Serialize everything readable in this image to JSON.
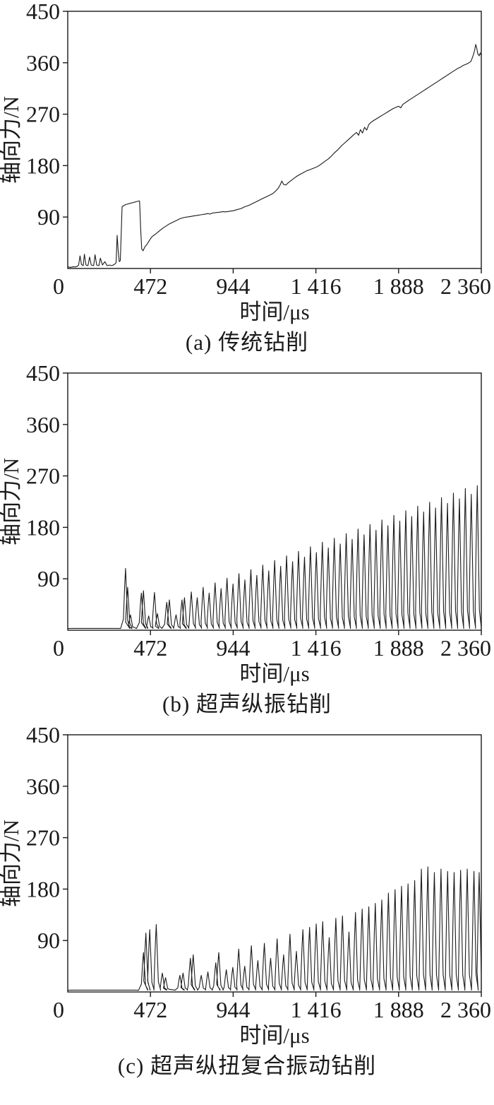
{
  "page": {
    "background": "#ffffff",
    "ink": "#1a1a1a"
  },
  "chart_data": {
    "note": "see charts[] — three stacked axial-force vs time plots"
  },
  "charts": [
    {
      "caption": "(a) 传统钻削",
      "xlabel": "时间/μs",
      "ylabel": "轴向力/N",
      "type": "line",
      "xlim": [
        0,
        2360
      ],
      "ylim": [
        0,
        450
      ],
      "xticks": [
        472,
        944,
        1416,
        1888,
        2360
      ],
      "xtick_labels": [
        "472",
        "944",
        "1 416",
        "1 888",
        "2 360"
      ],
      "yticks": [
        90,
        180,
        270,
        360,
        450
      ],
      "ytick_labels": [
        "90",
        "180",
        "270",
        "360",
        "450"
      ],
      "origin_label": "0",
      "points": [
        [
          0,
          3
        ],
        [
          30,
          3
        ],
        [
          55,
          4
        ],
        [
          62,
          6
        ],
        [
          70,
          22
        ],
        [
          78,
          7
        ],
        [
          88,
          5
        ],
        [
          95,
          25
        ],
        [
          104,
          6
        ],
        [
          115,
          5
        ],
        [
          125,
          20
        ],
        [
          134,
          6
        ],
        [
          148,
          5
        ],
        [
          156,
          24
        ],
        [
          165,
          6
        ],
        [
          178,
          5
        ],
        [
          186,
          18
        ],
        [
          198,
          6
        ],
        [
          212,
          12
        ],
        [
          224,
          5
        ],
        [
          238,
          6
        ],
        [
          252,
          5
        ],
        [
          266,
          7
        ],
        [
          276,
          10
        ],
        [
          282,
          58
        ],
        [
          288,
          30
        ],
        [
          294,
          12
        ],
        [
          300,
          14
        ],
        [
          306,
          70
        ],
        [
          310,
          108
        ],
        [
          320,
          110
        ],
        [
          332,
          112
        ],
        [
          344,
          113
        ],
        [
          356,
          114
        ],
        [
          368,
          115
        ],
        [
          380,
          116
        ],
        [
          392,
          117
        ],
        [
          404,
          118
        ],
        [
          410,
          118
        ],
        [
          416,
          70
        ],
        [
          422,
          34
        ],
        [
          430,
          31
        ],
        [
          440,
          38
        ],
        [
          452,
          42
        ],
        [
          464,
          48
        ],
        [
          472,
          52
        ],
        [
          482,
          56
        ],
        [
          500,
          60
        ],
        [
          520,
          65
        ],
        [
          540,
          70
        ],
        [
          560,
          74
        ],
        [
          580,
          78
        ],
        [
          600,
          81
        ],
        [
          620,
          84
        ],
        [
          640,
          87
        ],
        [
          660,
          89
        ],
        [
          680,
          90
        ],
        [
          700,
          91
        ],
        [
          720,
          92
        ],
        [
          740,
          93
        ],
        [
          760,
          94
        ],
        [
          780,
          95
        ],
        [
          800,
          96
        ],
        [
          825,
          97
        ],
        [
          850,
          98
        ],
        [
          875,
          99
        ],
        [
          900,
          99
        ],
        [
          922,
          100
        ],
        [
          944,
          101
        ],
        [
          966,
          103
        ],
        [
          990,
          105
        ],
        [
          1010,
          108
        ],
        [
          1030,
          110
        ],
        [
          1050,
          113
        ],
        [
          1070,
          116
        ],
        [
          1090,
          119
        ],
        [
          1110,
          122
        ],
        [
          1130,
          125
        ],
        [
          1150,
          128
        ],
        [
          1170,
          131
        ],
        [
          1185,
          135
        ],
        [
          1200,
          140
        ],
        [
          1212,
          146
        ],
        [
          1222,
          153
        ],
        [
          1232,
          147
        ],
        [
          1245,
          146
        ],
        [
          1258,
          150
        ],
        [
          1275,
          154
        ],
        [
          1292,
          158
        ],
        [
          1310,
          162
        ],
        [
          1328,
          165
        ],
        [
          1346,
          168
        ],
        [
          1364,
          171
        ],
        [
          1382,
          173
        ],
        [
          1400,
          175
        ],
        [
          1416,
          177
        ],
        [
          1434,
          180
        ],
        [
          1452,
          184
        ],
        [
          1470,
          188
        ],
        [
          1488,
          192
        ],
        [
          1506,
          197
        ],
        [
          1524,
          203
        ],
        [
          1542,
          208
        ],
        [
          1560,
          214
        ],
        [
          1578,
          219
        ],
        [
          1596,
          224
        ],
        [
          1614,
          229
        ],
        [
          1632,
          234
        ],
        [
          1648,
          238
        ],
        [
          1660,
          233
        ],
        [
          1670,
          243
        ],
        [
          1682,
          237
        ],
        [
          1694,
          247
        ],
        [
          1706,
          242
        ],
        [
          1718,
          252
        ],
        [
          1732,
          256
        ],
        [
          1746,
          259
        ],
        [
          1762,
          262
        ],
        [
          1778,
          265
        ],
        [
          1794,
          268
        ],
        [
          1810,
          271
        ],
        [
          1826,
          274
        ],
        [
          1842,
          277
        ],
        [
          1858,
          280
        ],
        [
          1874,
          282
        ],
        [
          1888,
          284
        ],
        [
          1900,
          281
        ],
        [
          1912,
          287
        ],
        [
          1926,
          290
        ],
        [
          1940,
          293
        ],
        [
          1955,
          296
        ],
        [
          1970,
          299
        ],
        [
          1985,
          302
        ],
        [
          2000,
          305
        ],
        [
          2015,
          308
        ],
        [
          2030,
          311
        ],
        [
          2045,
          314
        ],
        [
          2060,
          317
        ],
        [
          2075,
          320
        ],
        [
          2090,
          323
        ],
        [
          2105,
          326
        ],
        [
          2120,
          329
        ],
        [
          2135,
          332
        ],
        [
          2150,
          335
        ],
        [
          2165,
          338
        ],
        [
          2180,
          341
        ],
        [
          2195,
          344
        ],
        [
          2210,
          347
        ],
        [
          2225,
          350
        ],
        [
          2240,
          352
        ],
        [
          2255,
          355
        ],
        [
          2270,
          357
        ],
        [
          2285,
          359
        ],
        [
          2300,
          362
        ],
        [
          2308,
          368
        ],
        [
          2315,
          374
        ],
        [
          2322,
          382
        ],
        [
          2328,
          392
        ],
        [
          2334,
          386
        ],
        [
          2340,
          376
        ],
        [
          2348,
          372
        ],
        [
          2354,
          377
        ],
        [
          2360,
          373
        ]
      ]
    },
    {
      "caption": "(b) 超声纵振钻削",
      "xlabel": "时间/μs",
      "ylabel": "轴向力/N",
      "type": "spikes",
      "xlim": [
        0,
        2360
      ],
      "ylim": [
        0,
        450
      ],
      "xticks": [
        472,
        944,
        1416,
        1888,
        2360
      ],
      "xtick_labels": [
        "472",
        "944",
        "1 416",
        "1 888",
        "2 360"
      ],
      "yticks": [
        90,
        180,
        270,
        360,
        450
      ],
      "ytick_labels": [
        "90",
        "180",
        "270",
        "360",
        "450"
      ],
      "origin_label": "0",
      "baseline": 3,
      "spikes": [
        [
          330,
          105
        ],
        [
          342,
          72
        ],
        [
          358,
          24
        ],
        [
          420,
          62
        ],
        [
          432,
          66
        ],
        [
          462,
          22
        ],
        [
          495,
          63
        ],
        [
          512,
          26
        ],
        [
          565,
          46
        ],
        [
          580,
          50
        ],
        [
          618,
          24
        ],
        [
          652,
          50
        ],
        [
          666,
          54
        ],
        [
          705,
          64
        ],
        [
          739,
          54
        ],
        [
          773,
          72
        ],
        [
          807,
          62
        ],
        [
          841,
          80
        ],
        [
          875,
          70
        ],
        [
          909,
          88
        ],
        [
          943,
          78
        ],
        [
          977,
          96
        ],
        [
          1011,
          85
        ],
        [
          1045,
          103
        ],
        [
          1079,
          93
        ],
        [
          1113,
          111
        ],
        [
          1147,
          101
        ],
        [
          1181,
          119
        ],
        [
          1215,
          109
        ],
        [
          1249,
          127
        ],
        [
          1283,
          117
        ],
        [
          1317,
          135
        ],
        [
          1351,
          125
        ],
        [
          1385,
          143
        ],
        [
          1419,
          133
        ],
        [
          1453,
          151
        ],
        [
          1487,
          141
        ],
        [
          1521,
          158
        ],
        [
          1555,
          148
        ],
        [
          1589,
          166
        ],
        [
          1623,
          156
        ],
        [
          1657,
          174
        ],
        [
          1691,
          164
        ],
        [
          1725,
          182
        ],
        [
          1759,
          172
        ],
        [
          1793,
          190
        ],
        [
          1827,
          180
        ],
        [
          1861,
          198
        ],
        [
          1895,
          188
        ],
        [
          1929,
          206
        ],
        [
          1963,
          196
        ],
        [
          1997,
          214
        ],
        [
          2031,
          204
        ],
        [
          2065,
          221
        ],
        [
          2099,
          211
        ],
        [
          2133,
          229
        ],
        [
          2167,
          219
        ],
        [
          2201,
          237
        ],
        [
          2235,
          227
        ],
        [
          2269,
          245
        ],
        [
          2303,
          235
        ],
        [
          2337,
          250
        ]
      ]
    },
    {
      "caption": "(c) 超声纵扭复合振动钻削",
      "xlabel": "时间/μs",
      "ylabel": "轴向力/N",
      "type": "spikes",
      "xlim": [
        0,
        2360
      ],
      "ylim": [
        0,
        450
      ],
      "xticks": [
        472,
        944,
        1416,
        1888,
        2360
      ],
      "xtick_labels": [
        "472",
        "944",
        "1 416",
        "1 888",
        "2 360"
      ],
      "yticks": [
        90,
        180,
        270,
        360,
        450
      ],
      "ytick_labels": [
        "90",
        "180",
        "270",
        "360",
        "450"
      ],
      "origin_label": "0",
      "baseline": 3,
      "spikes": [
        [
          432,
          66
        ],
        [
          446,
          100
        ],
        [
          468,
          106
        ],
        [
          505,
          115
        ],
        [
          540,
          30
        ],
        [
          558,
          22
        ],
        [
          640,
          26
        ],
        [
          658,
          30
        ],
        [
          700,
          56
        ],
        [
          716,
          62
        ],
        [
          762,
          26
        ],
        [
          800,
          32
        ],
        [
          845,
          48
        ],
        [
          862,
          66
        ],
        [
          905,
          36
        ],
        [
          942,
          40
        ],
        [
          976,
          72
        ],
        [
          1010,
          42
        ],
        [
          1048,
          78
        ],
        [
          1085,
          52
        ],
        [
          1122,
          82
        ],
        [
          1158,
          56
        ],
        [
          1195,
          90
        ],
        [
          1232,
          62
        ],
        [
          1268,
          98
        ],
        [
          1305,
          68
        ],
        [
          1342,
          106
        ],
        [
          1380,
          110
        ],
        [
          1418,
          116
        ],
        [
          1455,
          120
        ],
        [
          1492,
          92
        ],
        [
          1530,
          126
        ],
        [
          1568,
          130
        ],
        [
          1605,
          102
        ],
        [
          1642,
          136
        ],
        [
          1680,
          142
        ],
        [
          1718,
          146
        ],
        [
          1755,
          152
        ],
        [
          1792,
          158
        ],
        [
          1830,
          170
        ],
        [
          1868,
          176
        ],
        [
          1905,
          182
        ],
        [
          1942,
          186
        ],
        [
          1980,
          192
        ],
        [
          2018,
          212
        ],
        [
          2055,
          216
        ],
        [
          2092,
          206
        ],
        [
          2130,
          212
        ],
        [
          2168,
          208
        ],
        [
          2205,
          206
        ],
        [
          2242,
          210
        ],
        [
          2280,
          212
        ],
        [
          2318,
          208
        ],
        [
          2348,
          206
        ]
      ]
    }
  ]
}
